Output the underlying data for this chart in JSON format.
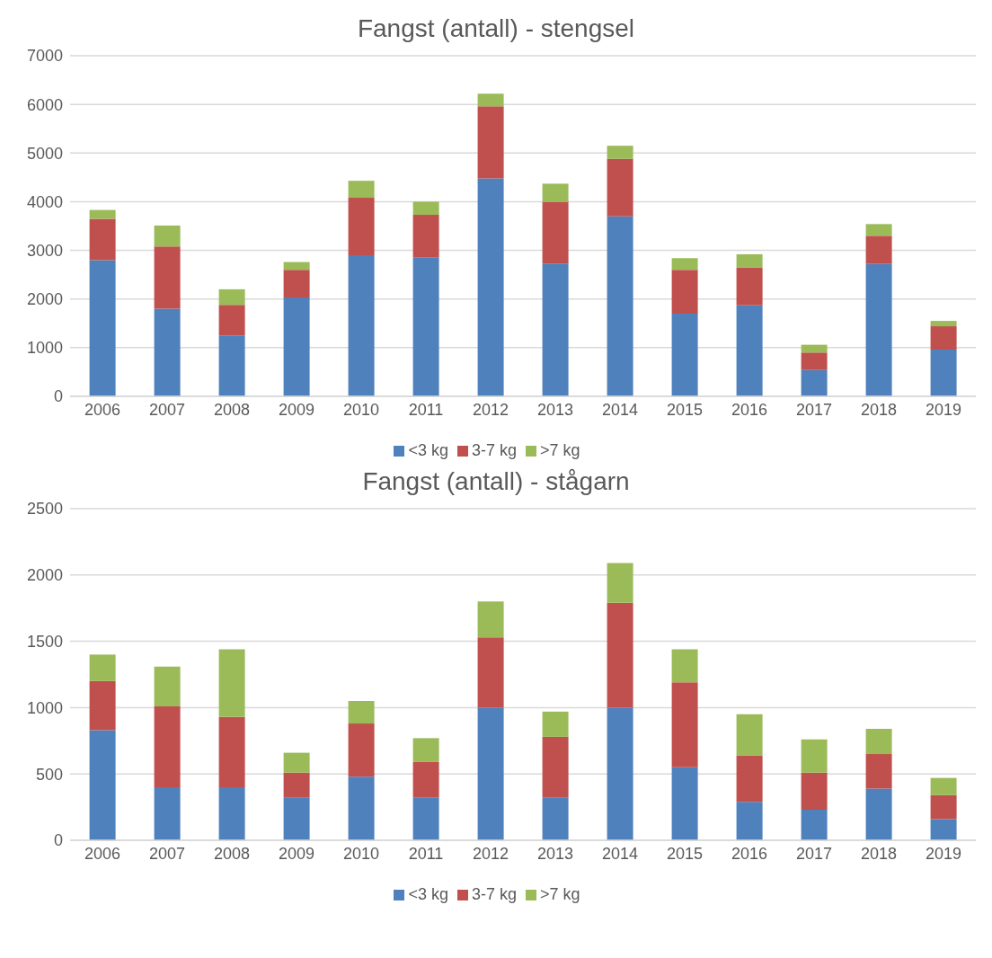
{
  "chart_data": [
    {
      "type": "bar",
      "title": "Fangst (antall) - stengsel",
      "categories": [
        "2006",
        "2007",
        "2008",
        "2009",
        "2010",
        "2011",
        "2012",
        "2013",
        "2014",
        "2015",
        "2016",
        "2017",
        "2018",
        "2019"
      ],
      "stacked": true,
      "series": [
        {
          "name": "<3 kg",
          "color": "#4f81bd",
          "values": [
            2800,
            1800,
            1250,
            2030,
            2900,
            2850,
            4480,
            2730,
            3700,
            1700,
            1870,
            540,
            2720,
            960
          ]
        },
        {
          "name": "3-7 kg",
          "color": "#c0504d",
          "values": [
            850,
            1280,
            630,
            570,
            1180,
            880,
            1480,
            1270,
            1180,
            900,
            780,
            360,
            580,
            480
          ]
        },
        {
          "name": ">7 kg",
          "color": "#9bbb59",
          "values": [
            180,
            430,
            320,
            160,
            350,
            270,
            260,
            370,
            270,
            240,
            270,
            160,
            240,
            110
          ]
        }
      ],
      "ylim": [
        0,
        7000
      ],
      "yticks": [
        0,
        1000,
        2000,
        3000,
        4000,
        5000,
        6000,
        7000
      ],
      "grid": "y",
      "legend": "bottom"
    },
    {
      "type": "bar",
      "title": "Fangst (antall) - stågarn",
      "categories": [
        "2006",
        "2007",
        "2008",
        "2009",
        "2010",
        "2011",
        "2012",
        "2013",
        "2014",
        "2015",
        "2016",
        "2017",
        "2018",
        "2019"
      ],
      "stacked": true,
      "series": [
        {
          "name": "<3 kg",
          "color": "#4f81bd",
          "values": [
            830,
            400,
            400,
            320,
            480,
            320,
            1000,
            320,
            1000,
            550,
            290,
            230,
            390,
            160
          ]
        },
        {
          "name": "3-7 kg",
          "color": "#c0504d",
          "values": [
            370,
            610,
            530,
            190,
            400,
            270,
            530,
            460,
            790,
            640,
            350,
            280,
            260,
            180
          ]
        },
        {
          "name": ">7 kg",
          "color": "#9bbb59",
          "values": [
            200,
            300,
            510,
            150,
            170,
            180,
            270,
            190,
            300,
            250,
            310,
            250,
            190,
            130
          ]
        }
      ],
      "ylim": [
        0,
        2500
      ],
      "yticks": [
        0,
        500,
        1000,
        1500,
        2000,
        2500
      ],
      "grid": "y",
      "legend": "bottom"
    }
  ]
}
